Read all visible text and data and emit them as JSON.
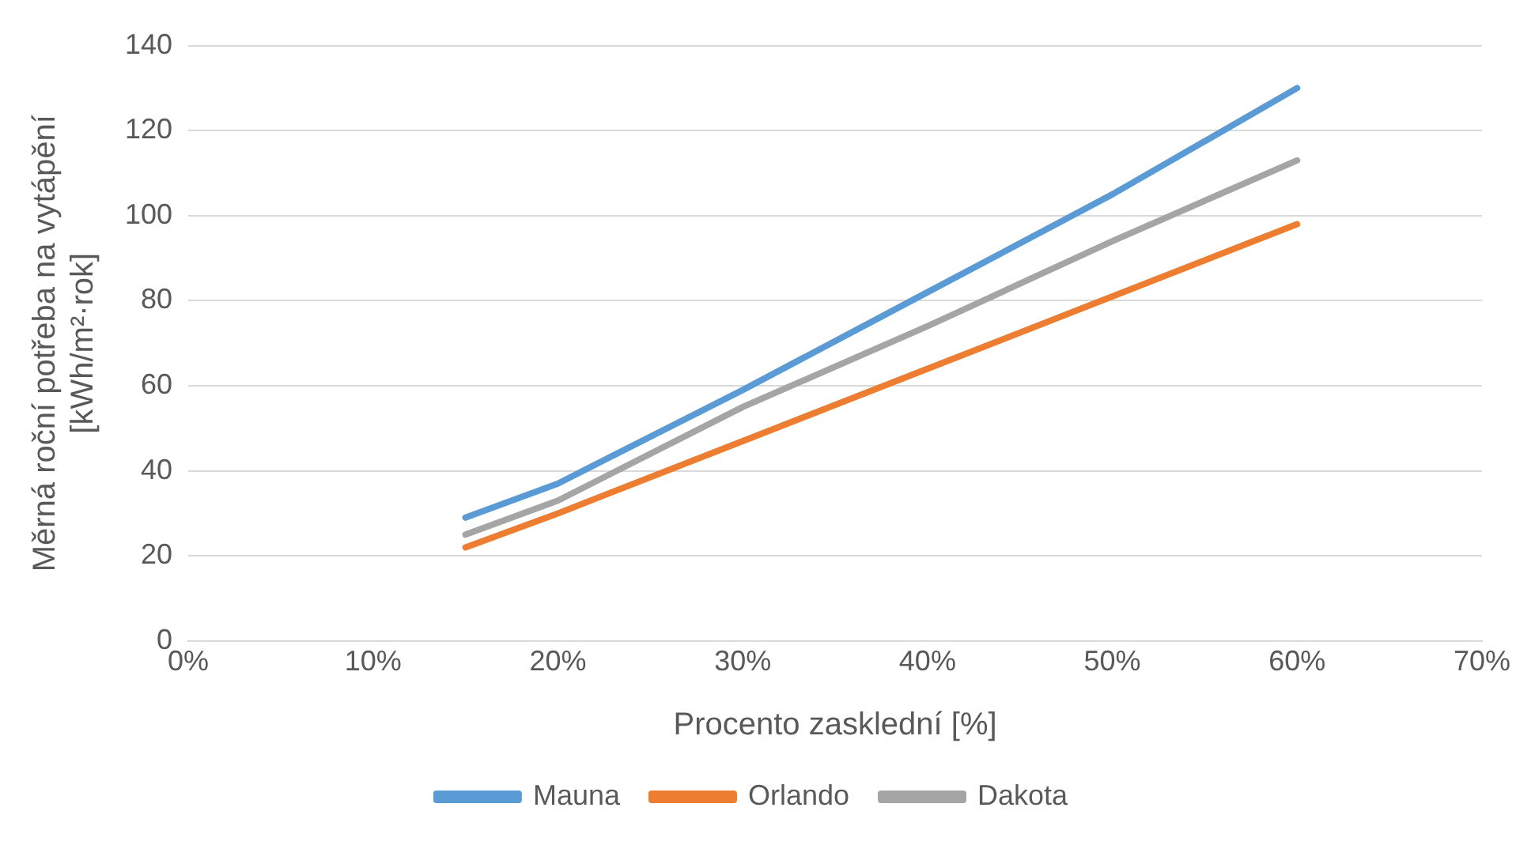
{
  "chart_data": {
    "type": "line",
    "xlabel": "Procento zasklední [%]",
    "ylabel": "Měrná roční potřeba na vytápění\n[kWh/m²·rok]",
    "x": [
      15,
      20,
      30,
      40,
      50,
      60
    ],
    "xlim": [
      0,
      70
    ],
    "xticks": [
      {
        "value": 0,
        "label": "0%"
      },
      {
        "value": 10,
        "label": "10%"
      },
      {
        "value": 20,
        "label": "20%"
      },
      {
        "value": 30,
        "label": "30%"
      },
      {
        "value": 40,
        "label": "40%"
      },
      {
        "value": 50,
        "label": "50%"
      },
      {
        "value": 60,
        "label": "60%"
      },
      {
        "value": 70,
        "label": "70%"
      }
    ],
    "ylim": [
      0,
      140
    ],
    "yticks": [
      0,
      20,
      40,
      60,
      80,
      100,
      120,
      140
    ],
    "series": [
      {
        "name": "Mauna",
        "color": "#5b9bd5",
        "values": [
          29,
          37,
          59,
          82,
          105,
          130
        ]
      },
      {
        "name": "Orlando",
        "color": "#ed7d31",
        "values": [
          22,
          30,
          47,
          64,
          81,
          98
        ]
      },
      {
        "name": "Dakota",
        "color": "#a5a5a5",
        "values": [
          25,
          33,
          55,
          74,
          94,
          113
        ]
      }
    ],
    "grid": "y",
    "legend": "bottom",
    "marker": "none",
    "line_style": "solid"
  }
}
